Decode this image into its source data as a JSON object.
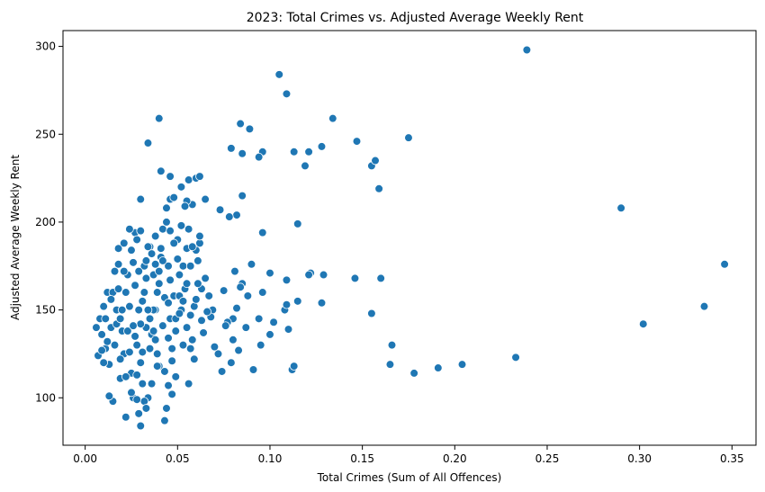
{
  "chart_data": {
    "type": "scatter",
    "title": "2023: Total Crimes vs. Adjusted Average Weekly Rent",
    "xlabel": "Total Crimes (Sum of All Offences)",
    "ylabel": "Adjusted Average Weekly Rent",
    "xlim": [
      -0.012,
      0.363
    ],
    "ylim": [
      73,
      309
    ],
    "xticks": [
      0.0,
      0.05,
      0.1,
      0.15,
      0.2,
      0.25,
      0.3,
      0.35
    ],
    "xtick_labels": [
      "0.00",
      "0.05",
      "0.10",
      "0.15",
      "0.20",
      "0.25",
      "0.30",
      "0.35"
    ],
    "yticks": [
      100,
      150,
      200,
      250,
      300
    ],
    "ytick_labels": [
      "100",
      "150",
      "200",
      "250",
      "300"
    ],
    "grid": false,
    "marker_color": "#1f77b4",
    "marker_edge_color": "#ffffff",
    "points": [
      [
        0.239,
        298
      ],
      [
        0.105,
        284
      ],
      [
        0.109,
        273
      ],
      [
        0.134,
        259
      ],
      [
        0.04,
        259
      ],
      [
        0.084,
        256
      ],
      [
        0.089,
        253
      ],
      [
        0.175,
        248
      ],
      [
        0.079,
        242
      ],
      [
        0.128,
        243
      ],
      [
        0.147,
        246
      ],
      [
        0.096,
        240
      ],
      [
        0.113,
        240
      ],
      [
        0.121,
        240
      ],
      [
        0.094,
        237
      ],
      [
        0.085,
        239
      ],
      [
        0.155,
        232
      ],
      [
        0.157,
        235
      ],
      [
        0.119,
        232
      ],
      [
        0.034,
        245
      ],
      [
        0.29,
        208
      ],
      [
        0.159,
        219
      ],
      [
        0.085,
        215
      ],
      [
        0.096,
        194
      ],
      [
        0.115,
        199
      ],
      [
        0.082,
        204
      ],
      [
        0.078,
        203
      ],
      [
        0.073,
        207
      ],
      [
        0.041,
        229
      ],
      [
        0.046,
        226
      ],
      [
        0.056,
        224
      ],
      [
        0.06,
        225
      ],
      [
        0.062,
        226
      ],
      [
        0.052,
        220
      ],
      [
        0.046,
        213
      ],
      [
        0.048,
        214
      ],
      [
        0.058,
        210
      ],
      [
        0.065,
        213
      ],
      [
        0.03,
        213
      ],
      [
        0.044,
        208
      ],
      [
        0.055,
        212
      ],
      [
        0.346,
        176
      ],
      [
        0.302,
        142
      ],
      [
        0.335,
        152
      ],
      [
        0.233,
        123
      ],
      [
        0.204,
        119
      ],
      [
        0.191,
        117
      ],
      [
        0.178,
        114
      ],
      [
        0.165,
        119
      ],
      [
        0.166,
        130
      ],
      [
        0.16,
        168
      ],
      [
        0.155,
        148
      ],
      [
        0.146,
        168
      ],
      [
        0.129,
        170
      ],
      [
        0.128,
        154
      ],
      [
        0.122,
        171
      ],
      [
        0.121,
        170
      ],
      [
        0.115,
        155
      ],
      [
        0.112,
        116
      ],
      [
        0.113,
        118
      ],
      [
        0.11,
        139
      ],
      [
        0.108,
        150
      ],
      [
        0.109,
        153
      ],
      [
        0.109,
        167
      ],
      [
        0.1,
        171
      ],
      [
        0.102,
        143
      ],
      [
        0.1,
        136
      ],
      [
        0.095,
        130
      ],
      [
        0.094,
        145
      ],
      [
        0.096,
        160
      ],
      [
        0.091,
        116
      ],
      [
        0.09,
        176
      ],
      [
        0.087,
        140
      ],
      [
        0.088,
        158
      ],
      [
        0.085,
        165
      ],
      [
        0.084,
        163
      ],
      [
        0.083,
        127
      ],
      [
        0.081,
        172
      ],
      [
        0.082,
        151
      ],
      [
        0.08,
        145
      ],
      [
        0.08,
        133
      ],
      [
        0.079,
        120
      ],
      [
        0.077,
        143
      ],
      [
        0.076,
        141
      ],
      [
        0.075,
        161
      ],
      [
        0.074,
        115
      ],
      [
        0.072,
        125
      ],
      [
        0.07,
        129
      ],
      [
        0.069,
        150
      ],
      [
        0.068,
        146
      ],
      [
        0.067,
        158
      ],
      [
        0.066,
        149
      ],
      [
        0.065,
        168
      ],
      [
        0.064,
        137
      ],
      [
        0.063,
        162
      ],
      [
        0.062,
        188
      ],
      [
        0.062,
        192
      ],
      [
        0.061,
        178
      ],
      [
        0.06,
        184
      ],
      [
        0.059,
        122
      ],
      [
        0.058,
        133
      ],
      [
        0.057,
        147
      ],
      [
        0.056,
        108
      ],
      [
        0.055,
        185
      ],
      [
        0.054,
        162
      ],
      [
        0.053,
        130
      ],
      [
        0.052,
        150
      ],
      [
        0.051,
        170
      ],
      [
        0.05,
        190
      ],
      [
        0.049,
        112
      ],
      [
        0.048,
        158
      ],
      [
        0.047,
        102
      ],
      [
        0.046,
        145
      ],
      [
        0.045,
        175
      ],
      [
        0.044,
        94
      ],
      [
        0.043,
        87
      ],
      [
        0.042,
        196
      ],
      [
        0.041,
        180
      ],
      [
        0.04,
        118
      ],
      [
        0.039,
        160
      ],
      [
        0.038,
        150
      ],
      [
        0.037,
        170
      ],
      [
        0.036,
        136
      ],
      [
        0.035,
        186
      ],
      [
        0.034,
        100
      ],
      [
        0.033,
        140
      ],
      [
        0.032,
        175
      ],
      [
        0.031,
        155
      ],
      [
        0.03,
        84
      ],
      [
        0.029,
        91
      ],
      [
        0.028,
        130
      ],
      [
        0.027,
        194
      ],
      [
        0.026,
        100
      ],
      [
        0.025,
        114
      ],
      [
        0.024,
        152
      ],
      [
        0.023,
        170
      ],
      [
        0.022,
        89
      ],
      [
        0.021,
        125
      ],
      [
        0.02,
        138
      ],
      [
        0.019,
        111
      ],
      [
        0.018,
        185
      ],
      [
        0.017,
        150
      ],
      [
        0.016,
        172
      ],
      [
        0.015,
        98
      ],
      [
        0.014,
        140
      ],
      [
        0.013,
        101
      ],
      [
        0.012,
        160
      ],
      [
        0.011,
        128
      ],
      [
        0.01,
        152
      ],
      [
        0.009,
        136
      ],
      [
        0.008,
        145
      ],
      [
        0.007,
        124
      ],
      [
        0.006,
        140
      ],
      [
        0.032,
        98
      ],
      [
        0.033,
        94
      ],
      [
        0.036,
        108
      ],
      [
        0.039,
        118
      ],
      [
        0.031,
        126
      ],
      [
        0.029,
        150
      ],
      [
        0.027,
        164
      ],
      [
        0.026,
        177
      ],
      [
        0.024,
        196
      ],
      [
        0.021,
        188
      ],
      [
        0.018,
        176
      ],
      [
        0.019,
        122
      ],
      [
        0.022,
        112
      ],
      [
        0.025,
        103
      ],
      [
        0.028,
        113
      ],
      [
        0.03,
        142
      ],
      [
        0.035,
        128
      ],
      [
        0.037,
        150
      ],
      [
        0.04,
        172
      ],
      [
        0.043,
        157
      ],
      [
        0.045,
        134
      ],
      [
        0.047,
        121
      ],
      [
        0.049,
        145
      ],
      [
        0.051,
        158
      ],
      [
        0.053,
        175
      ],
      [
        0.055,
        140
      ],
      [
        0.057,
        128
      ],
      [
        0.059,
        152
      ],
      [
        0.061,
        165
      ],
      [
        0.063,
        144
      ],
      [
        0.041,
        185
      ],
      [
        0.044,
        200
      ],
      [
        0.034,
        186
      ],
      [
        0.038,
        176
      ],
      [
        0.036,
        182
      ],
      [
        0.038,
        133
      ],
      [
        0.042,
        141
      ],
      [
        0.046,
        167
      ],
      [
        0.05,
        179
      ],
      [
        0.048,
        188
      ],
      [
        0.052,
        198
      ],
      [
        0.054,
        209
      ],
      [
        0.046,
        195
      ],
      [
        0.04,
        165
      ],
      [
        0.035,
        145
      ],
      [
        0.03,
        120
      ],
      [
        0.023,
        138
      ],
      [
        0.02,
        150
      ],
      [
        0.016,
        130
      ],
      [
        0.013,
        119
      ],
      [
        0.011,
        145
      ],
      [
        0.009,
        127
      ],
      [
        0.015,
        160
      ],
      [
        0.017,
        142
      ],
      [
        0.024,
        126
      ],
      [
        0.027,
        135
      ],
      [
        0.029,
        172
      ],
      [
        0.032,
        160
      ],
      [
        0.034,
        150
      ],
      [
        0.037,
        138
      ],
      [
        0.039,
        125
      ],
      [
        0.043,
        115
      ],
      [
        0.045,
        107
      ],
      [
        0.047,
        128
      ],
      [
        0.049,
        138
      ],
      [
        0.051,
        148
      ],
      [
        0.053,
        155
      ],
      [
        0.055,
        165
      ],
      [
        0.057,
        175
      ],
      [
        0.06,
        156
      ],
      [
        0.058,
        186
      ],
      [
        0.056,
        196
      ],
      [
        0.045,
        154
      ],
      [
        0.042,
        178
      ],
      [
        0.038,
        192
      ],
      [
        0.033,
        168
      ],
      [
        0.031,
        108
      ],
      [
        0.028,
        99
      ],
      [
        0.026,
        141
      ],
      [
        0.022,
        160
      ],
      [
        0.019,
        145
      ],
      [
        0.014,
        156
      ],
      [
        0.012,
        132
      ],
      [
        0.01,
        120
      ],
      [
        0.018,
        162
      ],
      [
        0.021,
        172
      ],
      [
        0.025,
        184
      ],
      [
        0.028,
        190
      ],
      [
        0.03,
        195
      ],
      [
        0.033,
        178
      ]
    ]
  }
}
